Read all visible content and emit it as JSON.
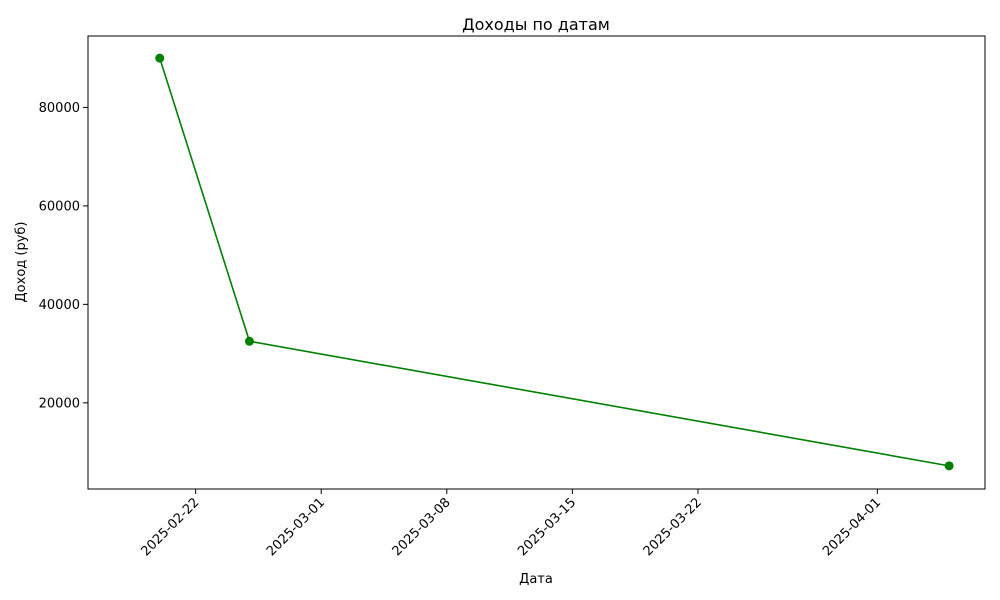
{
  "chart_data": {
    "type": "line",
    "title": "Доходы по датам",
    "xlabel": "Дата",
    "ylabel": "Доход (руб)",
    "x_type": "date",
    "xlim": [
      "2025-02-16",
      "2025-04-07"
    ],
    "ylim": [
      2500,
      94500
    ],
    "x_ticks": [
      "2025-02-22",
      "2025-03-01",
      "2025-03-08",
      "2025-03-15",
      "2025-03-22",
      "2025-04-01"
    ],
    "y_ticks": [
      20000,
      40000,
      60000,
      80000
    ],
    "grid": false,
    "legend": "none",
    "series": [
      {
        "color": "#008000",
        "marker": "circle",
        "x": [
          "2025-02-20",
          "2025-02-25",
          "2025-04-05"
        ],
        "y": [
          90000,
          32500,
          7200
        ]
      }
    ]
  }
}
